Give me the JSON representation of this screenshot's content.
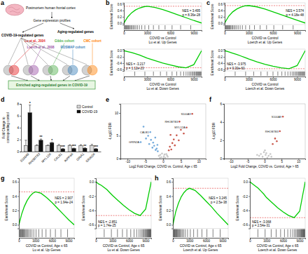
{
  "diagram": {
    "panel": "a",
    "source": "Postmortem human frontal cortex",
    "profiles": "Gene expression profiles",
    "covid": "COVID-19-regulated genes",
    "aging": "Aging-regulated genes",
    "cohorts": [
      {
        "label": "Lu et al., 2004",
        "color": "#e41a1c"
      },
      {
        "label": "Loerch et al., 2008",
        "color": "#984ea3"
      },
      {
        "label": "Gibbs cohort",
        "color": "#4daf4a"
      },
      {
        "label": "ROSMAP cohort",
        "color": "#377eb8"
      },
      {
        "label": "CMC cohort",
        "color": "#ff7f00"
      }
    ],
    "result": "Enriched aging-regulated genes in COVID-19"
  },
  "chart_data": [
    {
      "type": "line",
      "panel": "b",
      "x_label": [
        "COVID vs Control",
        "Lu et al. Up Genes"
      ],
      "y_label": "Enrichment Score",
      "x": [
        0,
        500,
        1000,
        1500,
        2000,
        2500,
        3000,
        4000,
        5000,
        6000,
        7000,
        8000,
        9000,
        10000
      ],
      "values": [
        0,
        0.2,
        0.33,
        0.42,
        0.48,
        0.52,
        0.54,
        0.5,
        0.43,
        0.35,
        0.26,
        0.17,
        0.08,
        0
      ],
      "color": "#00cc00",
      "hits": [
        60,
        150,
        240,
        330,
        420,
        520,
        610,
        700,
        820,
        950,
        1080,
        1220,
        1380,
        1550,
        1750,
        2000,
        2300,
        2700,
        3200,
        3800,
        4500,
        5300,
        6200,
        7300,
        8600
      ],
      "annotations": [
        "NES = 3.495",
        "p = 8.36e-28"
      ],
      "xlim": [
        0,
        10000
      ],
      "xticks": [
        0,
        3000,
        6000,
        9000
      ],
      "ylim": [
        -0.05,
        0.65
      ],
      "yticks": [
        {
          "value": 0,
          "label": "0.0"
        },
        0.2,
        0.4,
        0.6
      ]
    },
    {
      "type": "line",
      "x_label": [
        "COVID vs Control",
        "Lu et al. Down Genes"
      ],
      "y_label": "Enrichment Score",
      "x": [
        0,
        500,
        1000,
        1500,
        2000,
        2500,
        3000,
        4000,
        5000,
        6000,
        7000,
        8000,
        9000,
        10000
      ],
      "values": [
        0,
        -0.03,
        -0.06,
        -0.1,
        -0.14,
        -0.19,
        -0.24,
        -0.32,
        -0.4,
        -0.46,
        -0.52,
        -0.55,
        -0.45,
        0
      ],
      "color": "#00cc00",
      "hits": [
        1400,
        2700,
        3800,
        4700,
        5500,
        6200,
        6800,
        7300,
        7700,
        8000,
        8250,
        8450,
        8620,
        8780,
        8920,
        9050,
        9180,
        9300,
        9390,
        9480,
        9580,
        9670,
        9760,
        9850,
        9940
      ],
      "annotations": [
        "NES = -3.217",
        "p = 1.12e-23"
      ],
      "xlim": [
        0,
        10000
      ],
      "xticks": [
        0,
        3000,
        6000,
        9000
      ],
      "ylim": [
        -0.65,
        0.05
      ],
      "yticks": [
        -0.6,
        -0.4,
        -0.2,
        {
          "value": 0,
          "label": "0.0"
        }
      ]
    },
    {
      "type": "line",
      "panel": "c",
      "x_label": [
        "COVID vs Control",
        "Loerch et al. Up Genes"
      ],
      "y_label": "Enrichment Score",
      "x": [
        0,
        500,
        1000,
        1500,
        2000,
        2500,
        3000,
        4000,
        5000,
        6000,
        7000,
        8000,
        9000,
        10000
      ],
      "values": [
        0,
        0.22,
        0.36,
        0.45,
        0.51,
        0.55,
        0.56,
        0.52,
        0.45,
        0.36,
        0.27,
        0.18,
        0.09,
        0
      ],
      "color": "#00cc00",
      "hits": [
        50,
        130,
        210,
        300,
        380,
        470,
        560,
        650,
        760,
        880,
        1000,
        1150,
        1300,
        1480,
        1680,
        1920,
        2200,
        2600,
        3100,
        3700,
        4400,
        5200,
        6100,
        7200,
        8500
      ],
      "annotations": [
        "NES = 3.574",
        "p = 4.18e-48"
      ],
      "xlim": [
        0,
        10000
      ],
      "xticks": [
        0,
        3000,
        6000,
        9000
      ],
      "ylim": [
        -0.05,
        0.65
      ],
      "yticks": [
        {
          "value": 0,
          "label": "0.0"
        },
        0.2,
        0.4,
        0.6
      ]
    },
    {
      "type": "line",
      "x_label": [
        "COVID vs Control",
        "Loerch et al. Down Genes"
      ],
      "y_label": "Enrichment Score",
      "x": [
        0,
        500,
        1000,
        1500,
        2000,
        2500,
        3000,
        4000,
        5000,
        6000,
        7000,
        8000,
        9000,
        10000
      ],
      "values": [
        0,
        -0.04,
        -0.08,
        -0.12,
        -0.17,
        -0.22,
        -0.27,
        -0.36,
        -0.44,
        -0.5,
        -0.55,
        -0.58,
        -0.48,
        0
      ],
      "color": "#00cc00",
      "hits": [
        1300,
        2600,
        3600,
        4500,
        5300,
        6000,
        6600,
        7100,
        7500,
        7850,
        8150,
        8380,
        8570,
        8740,
        8890,
        9030,
        9160,
        9280,
        9380,
        9470,
        9570,
        9660,
        9750,
        9840,
        9930
      ],
      "annotations": [
        "NES = -3.975",
        "p = 9.30e-60"
      ],
      "xlim": [
        0,
        10000
      ],
      "xticks": [
        0,
        3000,
        6000,
        9000
      ],
      "ylim": [
        -0.65,
        0.05
      ],
      "yticks": [
        -0.6,
        -0.4,
        -0.2,
        {
          "value": 0,
          "label": "0.0"
        }
      ]
    },
    {
      "type": "bar",
      "panel": "d",
      "y_label": [
        "Fold Change to",
        "corresponding control"
      ],
      "categories": [
        "S100A9",
        "RHOBTB3",
        "MYL12A",
        "CALB1",
        "INPP4A",
        "GRIA1",
        "GRIN2A"
      ],
      "series": [
        {
          "name": "Control",
          "color": "#d9d9d9",
          "values": [
            1,
            1,
            1,
            1,
            1,
            1,
            1
          ],
          "errors": [
            0.9,
            0.15,
            0.1,
            0.2,
            0.15,
            0.15,
            0.2
          ]
        },
        {
          "name": "COVID-19",
          "color": "#111111",
          "values": [
            6.5,
            1.9,
            1.45,
            0.45,
            0.5,
            0.55,
            0.45
          ],
          "errors": [
            1.3,
            0.2,
            0.12,
            0.06,
            0.08,
            0.08,
            0.06
          ],
          "significance": [
            "*",
            "**",
            "*",
            "***",
            "***",
            "**",
            "***"
          ]
        }
      ],
      "ylim": [
        0,
        8
      ],
      "yticks": [
        0,
        2,
        4,
        6,
        8
      ],
      "legend": "upper right"
    },
    {
      "type": "scatter",
      "panel": "e",
      "x_label": "Log2 Fold Change, COVID vs. Control, Age ≤ 65",
      "y_label": "-Log10 FDR",
      "x": [
        -0.5,
        0.2,
        0.6,
        -0.8,
        0.9,
        -0.3,
        0.4,
        -1.2,
        1.3,
        0.1,
        -0.9,
        1.1,
        -1.5,
        -1.8,
        -2.1,
        -2.5,
        -2.8,
        -3.0,
        -3.4,
        -3.9,
        -4.2,
        -4.8,
        -5.5,
        -2.2,
        -1.6,
        -3.6,
        -6.3,
        1.6,
        1.9,
        2.3,
        2.6,
        3.0,
        3.3,
        3.8,
        4.4,
        5.0,
        5.8,
        2.1,
        6.6,
        8.2,
        4.6
      ],
      "values": [
        0.3,
        0.5,
        0.2,
        0.8,
        1.0,
        1.1,
        0.9,
        0.6,
        0.4,
        0.1,
        0.2,
        0.7,
        1.6,
        2.2,
        1.9,
        2.8,
        3.5,
        2.4,
        4.1,
        3.2,
        5.0,
        4.4,
        7.0,
        4.6,
        3.0,
        5.8,
        3.6,
        1.8,
        2.6,
        2.0,
        3.4,
        4.2,
        2.9,
        5.1,
        4.0,
        6.3,
        5.5,
        5.2,
        6.8,
        9.8,
        8.1
      ],
      "colors": [
        "#bdbdbd",
        "#bdbdbd",
        "#bdbdbd",
        "#bdbdbd",
        "#bdbdbd",
        "#bdbdbd",
        "#bdbdbd",
        "#bdbdbd",
        "#bdbdbd",
        "#bdbdbd",
        "#bdbdbd",
        "#bdbdbd",
        "#5b9bd5",
        "#5b9bd5",
        "#5b9bd5",
        "#5b9bd5",
        "#5b9bd5",
        "#5b9bd5",
        "#5b9bd5",
        "#5b9bd5",
        "#5b9bd5",
        "#5b9bd5",
        "#5b9bd5",
        "#5b9bd5",
        "#5b9bd5",
        "#5b9bd5",
        "#5b9bd5",
        "#c0392b",
        "#c0392b",
        "#c0392b",
        "#c0392b",
        "#c0392b",
        "#c0392b",
        "#c0392b",
        "#c0392b",
        "#c0392b",
        "#c0392b",
        "#c0392b",
        "#c0392b",
        "#c0392b",
        "#c0392b"
      ],
      "labels": [
        null,
        null,
        null,
        null,
        null,
        null,
        null,
        null,
        null,
        null,
        null,
        null,
        null,
        null,
        null,
        null,
        null,
        null,
        null,
        null,
        null,
        null,
        null,
        null,
        null,
        "CALB1",
        "GRIN2A",
        null,
        null,
        null,
        null,
        null,
        null,
        null,
        null,
        null,
        null,
        null,
        "MYL12A",
        "S100A9",
        "RHOBTB3"
      ],
      "xlim": [
        -12,
        12
      ],
      "xticks": [
        -10,
        -5,
        0,
        5,
        10
      ],
      "ylim": [
        0,
        12
      ],
      "yticks": [
        0,
        5,
        10
      ]
    },
    {
      "type": "scatter",
      "panel": "f",
      "x_label": "Log2 Fold Change, COVID vs. Control, Age > 65",
      "y_label": "-Log10 FDR",
      "x": [
        -0.6,
        0.3,
        0.8,
        -1.1,
        1.2,
        -0.2,
        0.5,
        -1.6,
        1.7,
        2.0,
        -2.2,
        0.1,
        2.4,
        3.1,
        3.6,
        4.5,
        5.4
      ],
      "values": [
        0.2,
        0.4,
        0.1,
        0.5,
        0.3,
        0.7,
        0.6,
        0.3,
        0.5,
        0.2,
        0.4,
        0.9,
        1.6,
        2.2,
        1.9,
        3.0,
        4.6
      ],
      "colors": [
        "#bdbdbd",
        "#bdbdbd",
        "#bdbdbd",
        "#bdbdbd",
        "#bdbdbd",
        "#bdbdbd",
        "#bdbdbd",
        "#bdbdbd",
        "#bdbdbd",
        "#bdbdbd",
        "#bdbdbd",
        "#bdbdbd",
        "#c0392b",
        "#c0392b",
        "#c0392b",
        "#c0392b",
        "#c0392b"
      ],
      "labels": [
        null,
        null,
        null,
        null,
        null,
        null,
        null,
        null,
        null,
        null,
        null,
        null,
        null,
        null,
        null,
        "RHOBTB3",
        "S100A9"
      ],
      "xlim": [
        -12,
        12
      ],
      "xticks": [
        -10,
        -5,
        0,
        5,
        10
      ],
      "ylim": [
        0,
        6
      ],
      "yticks": [
        0,
        2,
        4,
        6
      ]
    },
    {
      "type": "line",
      "panel": "g",
      "x_label": [
        "COVID vs Control, Age ≤ 65",
        "Lu et al. Up Genes"
      ],
      "y_label": "Enrichment Score",
      "x": [
        0,
        500,
        1000,
        1500,
        2000,
        2500,
        3000,
        4000,
        5000,
        6000,
        7000,
        8000,
        9000,
        10000
      ],
      "values": [
        0,
        0.15,
        0.26,
        0.34,
        0.4,
        0.44,
        0.46,
        0.44,
        0.38,
        0.31,
        0.23,
        0.15,
        0.07,
        0
      ],
      "color": "#00cc00",
      "hits": [
        70,
        170,
        270,
        370,
        480,
        590,
        700,
        820,
        960,
        1100,
        1260,
        1430,
        1620,
        1830,
        2080,
        2360,
        2700,
        3100,
        3600,
        4200,
        4900,
        5700,
        6600,
        7600,
        8800
      ],
      "annotations": [
        "NES = 2.907",
        "p = 1.94e-24"
      ],
      "xlim": [
        0,
        10000
      ],
      "xticks": [
        0,
        3000,
        6000,
        9000
      ],
      "ylim": [
        -0.05,
        0.65
      ],
      "yticks": [
        {
          "value": 0,
          "label": "0.0"
        },
        0.2,
        0.4,
        0.6
      ]
    },
    {
      "type": "line",
      "x_label": [
        "COVID vs Control, Age ≤ 65",
        "Lu et al. Down Genes"
      ],
      "y_label": "Enrichment Score",
      "x": [
        0,
        500,
        1000,
        1500,
        2000,
        2500,
        3000,
        4000,
        5000,
        6000,
        7000,
        8000,
        9000,
        10000
      ],
      "values": [
        0,
        -0.03,
        -0.05,
        -0.08,
        -0.11,
        -0.15,
        -0.19,
        -0.26,
        -0.33,
        -0.39,
        -0.44,
        -0.47,
        -0.38,
        0
      ],
      "color": "#00cc00",
      "hits": [
        1500,
        2800,
        3900,
        4800,
        5600,
        6300,
        6900,
        7400,
        7800,
        8100,
        8350,
        8550,
        8720,
        8870,
        9000,
        9120,
        9240,
        9340,
        9440,
        9530,
        9620,
        9700,
        9780,
        9860,
        9940
      ],
      "annotations": [
        "NES = -2.851",
        "p = 1.74e-25"
      ],
      "xlim": [
        0,
        10000
      ],
      "xticks": [
        0,
        3000,
        6000,
        9000
      ],
      "ylim": [
        -0.65,
        0.05
      ],
      "yticks": [
        -0.6,
        -0.4,
        -0.2,
        {
          "value": 0,
          "label": "0.0"
        }
      ]
    },
    {
      "type": "line",
      "panel": "h",
      "x_label": [
        "COVID vs Control, Age ≤ 65",
        "Loerch et al. Up Genes"
      ],
      "y_label": "Enrichment Score",
      "x": [
        0,
        500,
        1000,
        1500,
        2000,
        2500,
        3000,
        4000,
        5000,
        6000,
        7000,
        8000,
        9000,
        10000
      ],
      "values": [
        0,
        0.18,
        0.3,
        0.39,
        0.45,
        0.49,
        0.51,
        0.48,
        0.41,
        0.33,
        0.25,
        0.16,
        0.08,
        0
      ],
      "color": "#00cc00",
      "hits": [
        55,
        140,
        225,
        315,
        400,
        495,
        590,
        690,
        800,
        920,
        1050,
        1190,
        1350,
        1520,
        1720,
        1960,
        2250,
        2650,
        3150,
        3750,
        4450,
        5250,
        6150,
        7250,
        8550
      ],
      "annotations": [
        "NES = 3.245",
        "p = 2.5e-38"
      ],
      "xlim": [
        0,
        10000
      ],
      "xticks": [
        0,
        3000,
        6000,
        9000
      ],
      "ylim": [
        -0.05,
        0.65
      ],
      "yticks": [
        {
          "value": 0,
          "label": "0.0"
        },
        0.2,
        0.4,
        0.6
      ]
    },
    {
      "type": "line",
      "x_label": [
        "COVID vs Control, Age ≤ 65",
        "Loerch et al. Down Genes"
      ],
      "y_label": "Enrichment Score",
      "x": [
        0,
        500,
        1000,
        1500,
        2000,
        2500,
        3000,
        4000,
        5000,
        6000,
        7000,
        8000,
        9000,
        10000
      ],
      "values": [
        0,
        -0.03,
        -0.06,
        -0.09,
        -0.13,
        -0.17,
        -0.22,
        -0.29,
        -0.36,
        -0.42,
        -0.47,
        -0.5,
        -0.41,
        0
      ],
      "color": "#00cc00",
      "hits": [
        1450,
        2750,
        3850,
        4750,
        5550,
        6250,
        6850,
        7350,
        7750,
        8050,
        8300,
        8500,
        8670,
        8830,
        8960,
        9090,
        9210,
        9320,
        9420,
        9510,
        9600,
        9690,
        9770,
        9850,
        9930
      ],
      "annotations": [
        "NES = -3.068",
        "p = 2.54e-31"
      ],
      "xlim": [
        0,
        10000
      ],
      "xticks": [
        0,
        3000,
        6000,
        9000
      ],
      "ylim": [
        -0.65,
        0.05
      ],
      "yticks": [
        -0.6,
        -0.4,
        -0.2,
        {
          "value": 0,
          "label": "0.0"
        }
      ]
    }
  ]
}
